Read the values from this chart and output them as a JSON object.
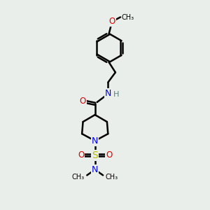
{
  "bg_color": "#eaeeea",
  "bond_color": "#000000",
  "bond_width": 1.8,
  "figsize": [
    3.0,
    3.0
  ],
  "dpi": 100,
  "xlim": [
    -1.8,
    1.8
  ],
  "ylim": [
    -0.8,
    9.5
  ]
}
